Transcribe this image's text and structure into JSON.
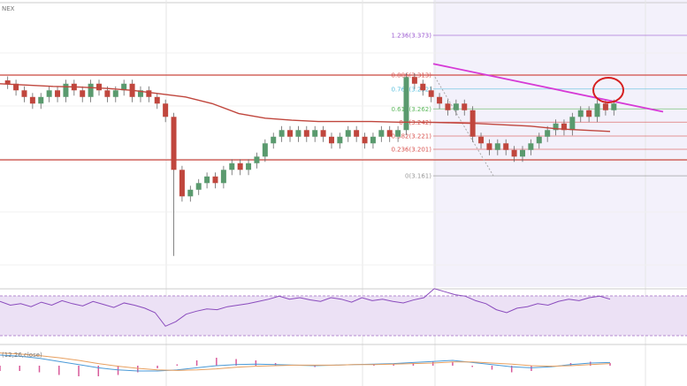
{
  "header": {
    "exchange_label": "NEX"
  },
  "chart_data": {
    "type": "candlestick",
    "price_range": [
      2.98,
      3.42
    ],
    "closes": [
      3.3,
      3.29,
      3.28,
      3.27,
      3.28,
      3.29,
      3.28,
      3.3,
      3.29,
      3.28,
      3.3,
      3.29,
      3.28,
      3.29,
      3.3,
      3.28,
      3.29,
      3.28,
      3.27,
      3.25,
      3.17,
      3.13,
      3.14,
      3.15,
      3.16,
      3.15,
      3.17,
      3.18,
      3.17,
      3.18,
      3.19,
      3.21,
      3.22,
      3.23,
      3.22,
      3.23,
      3.22,
      3.23,
      3.22,
      3.21,
      3.22,
      3.23,
      3.22,
      3.21,
      3.22,
      3.23,
      3.22,
      3.23,
      3.31,
      3.3,
      3.29,
      3.28,
      3.27,
      3.26,
      3.27,
      3.26,
      3.22,
      3.21,
      3.2,
      3.21,
      3.2,
      3.19,
      3.2,
      3.21,
      3.22,
      3.23,
      3.24,
      3.23,
      3.25,
      3.26,
      3.25,
      3.27,
      3.26,
      3.27
    ],
    "moving_average": [
      3.3,
      3.298,
      3.296,
      3.295,
      3.293,
      3.29,
      3.285,
      3.28,
      3.27,
      3.255,
      3.248,
      3.245,
      3.243,
      3.243,
      3.243,
      3.242,
      3.242,
      3.241,
      3.24,
      3.238,
      3.236,
      3.232,
      3.23,
      3.228
    ],
    "resistance_lines": [
      3.313,
      3.185
    ],
    "fibonacci": [
      {
        "label": "1.236(3.373)",
        "price": 3.373,
        "color": "#9b59d0"
      },
      {
        "label": "0.886(3.313)",
        "price": 3.313,
        "color": "#d9534f"
      },
      {
        "label": "0.764(3.292)",
        "price": 3.292,
        "color": "#5bc0de"
      },
      {
        "label": "0.618(3.262)",
        "price": 3.262,
        "color": "#5cb85c"
      },
      {
        "label": "0.5(3.242)",
        "price": 3.242,
        "color": "#d9534f"
      },
      {
        "label": "0.382(3.221)",
        "price": 3.221,
        "color": "#d9534f"
      },
      {
        "label": "0.236(3.201)",
        "price": 3.201,
        "color": "#d9534f"
      },
      {
        "label": "0(3.161)",
        "price": 3.161,
        "color": "#999999"
      }
    ],
    "trendline": {
      "from": 3.33,
      "to": 3.275,
      "color": "#d63ad6"
    },
    "rsi": [
      55,
      50,
      52,
      48,
      54,
      50,
      56,
      52,
      49,
      55,
      51,
      47,
      53,
      50,
      46,
      40,
      22,
      28,
      38,
      42,
      45,
      44,
      48,
      50,
      52,
      55,
      58,
      62,
      58,
      60,
      57,
      55,
      60,
      58,
      54,
      60,
      56,
      58,
      55,
      53,
      57,
      60,
      72,
      68,
      64,
      62,
      56,
      52,
      44,
      40,
      46,
      48,
      52,
      50,
      55,
      58,
      56,
      60,
      62,
      58
    ],
    "macd_label": "(12,26,close)",
    "macd": [
      0.02,
      0.018,
      0.014,
      0.008,
      0.002,
      -0.004,
      -0.008,
      -0.01,
      -0.01,
      -0.008,
      -0.004,
      0,
      0.002,
      0.003,
      0.002,
      0.001,
      0,
      0.001,
      0.002,
      0.003,
      0.004,
      0.006,
      0.008,
      0.01,
      0.006,
      0.002,
      -0.002,
      -0.004,
      -0.002,
      0.002,
      0.005,
      0.006
    ],
    "signal": [
      0.024,
      0.022,
      0.019,
      0.015,
      0.01,
      0.004,
      -0.001,
      -0.005,
      -0.008,
      -0.009,
      -0.008,
      -0.006,
      -0.003,
      -0.001,
      0,
      0.001,
      0.001,
      0.001,
      0.002,
      0.002,
      0.003,
      0.004,
      0.005,
      0.007,
      0.007,
      0.005,
      0.003,
      0,
      -0.001,
      0,
      0.002,
      0.004
    ]
  }
}
